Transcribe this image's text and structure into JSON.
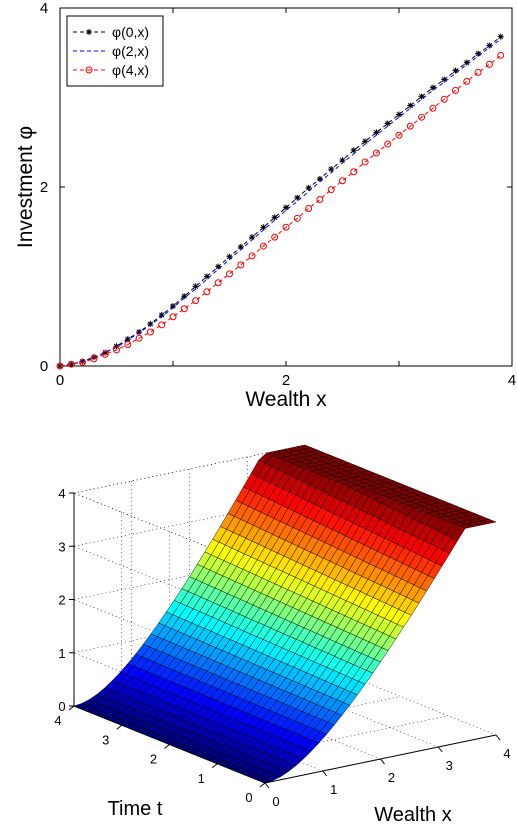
{
  "chart_data": [
    {
      "type": "line",
      "xlabel": "Wealth x",
      "ylabel": "Investment φ",
      "xlim": [
        0,
        4
      ],
      "ylim": [
        0,
        4
      ],
      "xticks": [
        "0",
        "2",
        "4"
      ],
      "yticks": [
        "0",
        "2",
        "4"
      ],
      "grid": false,
      "legend_position": "top-left",
      "x": [
        0,
        0.1,
        0.2,
        0.3,
        0.4,
        0.5,
        0.6,
        0.7,
        0.8,
        0.9,
        1.0,
        1.1,
        1.2,
        1.3,
        1.4,
        1.5,
        1.6,
        1.7,
        1.8,
        1.9,
        2.0,
        2.1,
        2.2,
        2.3,
        2.4,
        2.5,
        2.6,
        2.7,
        2.8,
        2.9,
        3.0,
        3.1,
        3.2,
        3.3,
        3.4,
        3.5,
        3.6,
        3.7,
        3.8,
        3.9
      ],
      "series": [
        {
          "name": "φ(0,x)",
          "color": "#000000",
          "marker": "asterisk",
          "values": [
            0.0,
            0.02,
            0.05,
            0.1,
            0.15,
            0.22,
            0.3,
            0.38,
            0.47,
            0.57,
            0.67,
            0.78,
            0.89,
            1.0,
            1.11,
            1.22,
            1.33,
            1.44,
            1.55,
            1.66,
            1.77,
            1.88,
            1.99,
            2.09,
            2.2,
            2.3,
            2.41,
            2.51,
            2.61,
            2.71,
            2.81,
            2.91,
            3.01,
            3.11,
            3.2,
            3.3,
            3.39,
            3.49,
            3.58,
            3.68
          ]
        },
        {
          "name": "φ(2,x)",
          "color": "#0000ff",
          "marker": "none",
          "values": [
            0.0,
            0.02,
            0.05,
            0.09,
            0.15,
            0.21,
            0.29,
            0.37,
            0.46,
            0.55,
            0.65,
            0.76,
            0.86,
            0.97,
            1.08,
            1.19,
            1.3,
            1.41,
            1.52,
            1.63,
            1.74,
            1.84,
            1.95,
            2.06,
            2.16,
            2.27,
            2.37,
            2.48,
            2.58,
            2.68,
            2.78,
            2.88,
            2.98,
            3.08,
            3.17,
            3.27,
            3.37,
            3.46,
            3.56,
            3.65
          ]
        },
        {
          "name": "φ(4,x)",
          "color": "#ff0000",
          "marker": "circle",
          "values": [
            0.0,
            0.02,
            0.04,
            0.08,
            0.13,
            0.18,
            0.24,
            0.31,
            0.38,
            0.46,
            0.55,
            0.64,
            0.73,
            0.83,
            0.93,
            1.03,
            1.13,
            1.23,
            1.34,
            1.44,
            1.55,
            1.65,
            1.76,
            1.86,
            1.97,
            2.07,
            2.17,
            2.28,
            2.38,
            2.48,
            2.58,
            2.68,
            2.78,
            2.88,
            2.98,
            3.08,
            3.18,
            3.28,
            3.37,
            3.47
          ]
        }
      ]
    },
    {
      "type": "surface",
      "xlabel": "Wealth x",
      "ylabel": "Time t",
      "zlabel": "",
      "xlim": [
        0,
        4
      ],
      "ylim": [
        0,
        4
      ],
      "zlim": [
        0,
        4
      ],
      "xticks": [
        "0",
        "1",
        "2",
        "3",
        "4"
      ],
      "yticks": [
        "0",
        "1",
        "2",
        "3",
        "4"
      ],
      "zticks": [
        "0",
        "1",
        "2",
        "3",
        "4"
      ],
      "grid": true,
      "colormap": "jet",
      "surface": "z = φ(t,x), increasing in x, nearly constant in t",
      "grid_resolution": 30
    }
  ]
}
